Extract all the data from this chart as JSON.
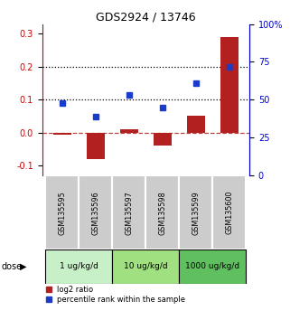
{
  "title": "GDS2924 / 13746",
  "samples": [
    "GSM135595",
    "GSM135596",
    "GSM135597",
    "GSM135598",
    "GSM135599",
    "GSM135600"
  ],
  "log2_ratio": [
    -0.005,
    -0.08,
    0.012,
    -0.04,
    0.052,
    0.29
  ],
  "percentile_rank": [
    0.09,
    0.05,
    0.115,
    0.077,
    0.15,
    0.2
  ],
  "dose_groups": [
    {
      "label": "1 ug/kg/d",
      "start": 0,
      "end": 1,
      "color": "#c8f0c8"
    },
    {
      "label": "10 ug/kg/d",
      "start": 2,
      "end": 3,
      "color": "#a0e080"
    },
    {
      "label": "1000 ug/kg/d",
      "start": 4,
      "end": 5,
      "color": "#60c060"
    }
  ],
  "bar_color": "#b22020",
  "dot_color": "#1a3cc8",
  "left_axis_color": "#cc0000",
  "right_axis_color": "#0000cc",
  "ylim_left": [
    -0.13,
    0.33
  ],
  "ylim_right": [
    0,
    100
  ],
  "yticks_left": [
    -0.1,
    0.0,
    0.1,
    0.2,
    0.3
  ],
  "yticks_right": [
    0,
    25,
    50,
    75,
    100
  ],
  "hline_y": [
    0.1,
    0.2
  ],
  "zero_line_y": 0.0,
  "sample_panel_color": "#cccccc",
  "sample_border_color": "#ffffff",
  "background_color": "#ffffff",
  "dose_label": "dose",
  "legend_log2": "log2 ratio",
  "legend_pct": "percentile rank within the sample"
}
